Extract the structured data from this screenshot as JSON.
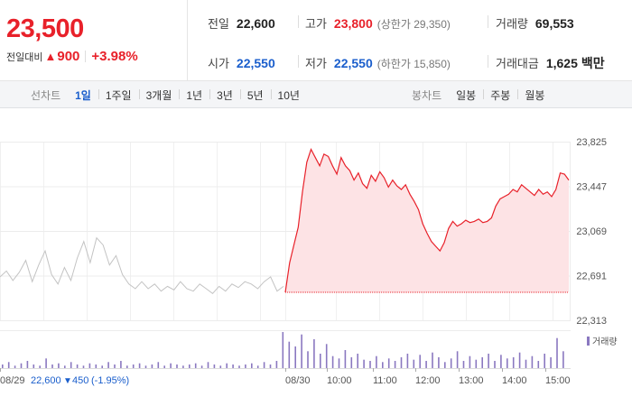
{
  "summary": {
    "price": "23,500",
    "change_label": "전일대비",
    "change_value": "900",
    "change_percent": "+3.98%",
    "prev_close": {
      "label": "전일",
      "value": "22,600"
    },
    "open": {
      "label": "시가",
      "value": "22,550"
    },
    "high": {
      "label": "고가",
      "value": "23,800",
      "sub": "(상한가 29,350)"
    },
    "low": {
      "label": "저가",
      "value": "22,550",
      "sub": "(하한가 15,850)"
    },
    "volume": {
      "label": "거래량",
      "value": "69,553"
    },
    "amount": {
      "label": "거래대금",
      "value": "1,625",
      "unit": "백만"
    }
  },
  "line_tabs": {
    "title": "선차트",
    "items": [
      "1일",
      "1주일",
      "3개월",
      "1년",
      "3년",
      "5년",
      "10년"
    ],
    "active": 0
  },
  "candle_tabs": {
    "title": "봉차트",
    "items": [
      "일봉",
      "주봉",
      "월봉"
    ]
  },
  "footer": {
    "prev_date": "08/29",
    "prev_price": "22,600",
    "prev_change": "450",
    "prev_pct": "(-1.95%)"
  },
  "colors": {
    "up": "#e8212a",
    "down": "#1a5ecc",
    "prev_line": "#c3c3c3",
    "fill": "#fde3e5",
    "volume": "#8a78c0"
  },
  "chart_data": {
    "type": "line",
    "ylim": [
      22313,
      23825
    ],
    "yticks": [
      "23,825",
      "23,447",
      "23,069",
      "22,691",
      "22,313"
    ],
    "xticks": [
      "08/29",
      "08/30",
      "10:00",
      "11:00",
      "12:00",
      "13:00",
      "14:00",
      "15:00"
    ],
    "reference_price": 22550,
    "volume_label": "거래량",
    "series": [
      {
        "values": [
          22680,
          22730,
          22650,
          22720,
          22820,
          22640,
          22780,
          22900,
          22700,
          22620,
          22760,
          22650,
          22840,
          22980,
          22800,
          23010,
          22950,
          22780,
          22860,
          22700,
          22620,
          22580,
          22640,
          22580,
          22620,
          22560,
          22600,
          22570,
          22640,
          22580,
          22560,
          22620,
          22580,
          22540,
          22600,
          22560,
          22620,
          22590,
          22640,
          22620,
          22580,
          22640,
          22680,
          22560,
          22600
        ]
      },
      {
        "values": [
          22550,
          22800,
          22950,
          23100,
          23400,
          23650,
          23760,
          23690,
          23620,
          23720,
          23700,
          23620,
          23550,
          23690,
          23620,
          23580,
          23500,
          23560,
          23470,
          23430,
          23540,
          23490,
          23570,
          23520,
          23440,
          23500,
          23450,
          23420,
          23460,
          23380,
          23320,
          23250,
          23130,
          23050,
          22980,
          22940,
          22900,
          22970,
          23090,
          23150,
          23110,
          23130,
          23160,
          23140,
          23150,
          23170,
          23140,
          23150,
          23180,
          23280,
          23340,
          23360,
          23380,
          23420,
          23400,
          23460,
          23430,
          23400,
          23370,
          23420,
          23380,
          23400,
          23360,
          23420,
          23560,
          23550,
          23500
        ]
      }
    ],
    "volume": [
      3,
      5,
      2,
      4,
      6,
      3,
      2,
      8,
      3,
      4,
      2,
      5,
      3,
      2,
      4,
      3,
      2,
      5,
      3,
      6,
      2,
      3,
      4,
      2,
      3,
      5,
      2,
      4,
      3,
      2,
      3,
      4,
      2,
      5,
      3,
      2,
      4,
      3,
      2,
      3,
      4,
      2,
      5,
      3,
      6,
      30,
      22,
      18,
      28,
      14,
      24,
      12,
      20,
      10,
      8,
      15,
      9,
      12,
      7,
      6,
      10,
      5,
      8,
      6,
      9,
      12,
      7,
      11,
      6,
      13,
      9,
      5,
      8,
      14,
      6,
      10,
      7,
      9,
      12,
      6,
      11,
      8,
      9,
      13,
      7,
      10,
      6,
      12,
      9,
      25,
      14
    ]
  }
}
